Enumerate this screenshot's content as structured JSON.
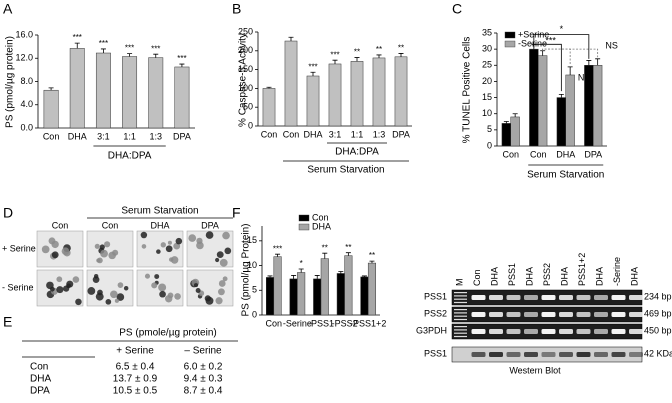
{
  "panel_labels": [
    "A",
    "B",
    "C",
    "D",
    "E",
    "F"
  ],
  "chart_data": [
    {
      "type": "bar",
      "ylabel": "PS (pmol/µg protein)",
      "categories": [
        "Con",
        "DHA",
        "3:1",
        "1:1",
        "1:3",
        "DPA"
      ],
      "values": [
        6.5,
        13.7,
        12.9,
        12.3,
        12.1,
        10.5
      ],
      "errors": [
        0.4,
        0.9,
        0.7,
        0.5,
        0.6,
        0.5
      ],
      "significance": [
        null,
        "***",
        "***",
        "***",
        "***",
        "***"
      ],
      "color": "#c0c0c0",
      "ylim": [
        0,
        16
      ],
      "yticks": [
        {
          "value": 0,
          "label": "0.0"
        },
        {
          "value": 4,
          "label": "4.0"
        },
        {
          "value": 8,
          "label": "8.0"
        },
        {
          "value": 12,
          "label": "12.0"
        },
        {
          "value": 16,
          "label": "16.0"
        }
      ],
      "group_label": "DHA:DPA"
    },
    {
      "type": "bar",
      "ylabel": "% Caspase-3 Activity",
      "categories": [
        "Con",
        "Con",
        "DHA",
        "3:1",
        "1:1",
        "1:3",
        "DPA"
      ],
      "values": [
        100,
        226,
        133,
        165,
        172,
        181,
        184
      ],
      "errors": [
        3,
        10,
        10,
        10,
        10,
        8,
        9
      ],
      "significance": [
        null,
        null,
        "***",
        "***",
        "**",
        "**",
        "**"
      ],
      "color": "#c0c0c0",
      "ylim": [
        0,
        250
      ],
      "yticks": [
        0,
        50,
        100,
        150,
        200,
        250
      ],
      "group_label": "DHA:DPA",
      "condition_label": "Serum Starvation"
    },
    {
      "type": "grouped_bar",
      "ylabel": "% TUNEL Positive Cells",
      "categories": [
        "Con",
        "Con",
        "DHA",
        "DPA"
      ],
      "series": [
        {
          "name": "+Serine",
          "color": "#000000",
          "values": [
            7,
            30,
            15,
            25
          ],
          "errors": [
            0.6,
            1.5,
            1.0,
            1.5
          ]
        },
        {
          "name": "-Serine",
          "color": "#a6a6a6",
          "values": [
            9,
            28,
            22,
            25
          ],
          "errors": [
            1.0,
            1.5,
            2.5,
            2.0
          ]
        }
      ],
      "ylim": [
        0,
        35
      ],
      "yticks": [
        0,
        5,
        10,
        15,
        20,
        25,
        30,
        35
      ],
      "annotations": [
        "***",
        "*",
        "NS",
        "NS"
      ],
      "condition_label": "Serum Starvation",
      "legend": "upper left"
    },
    {
      "type": "grouped_bar",
      "ylabel": "PS (pmol/µg Protein)",
      "categories": [
        "Con",
        "-Serine",
        "-PSS1",
        "-PSS2",
        "-PSS1+2"
      ],
      "series": [
        {
          "name": "Con",
          "color": "#000000",
          "values": [
            7.6,
            7.3,
            7.3,
            8.4,
            7.7
          ],
          "errors": [
            0.3,
            0.7,
            0.7,
            0.4,
            0.2
          ]
        },
        {
          "name": "DHA",
          "color": "#a6a6a6",
          "values": [
            11.8,
            8.6,
            11.4,
            12.0,
            10.5
          ],
          "errors": [
            0.5,
            0.7,
            1.1,
            0.6,
            0.4
          ],
          "significance": [
            "***",
            "*",
            "**",
            "**",
            "**"
          ]
        }
      ],
      "ylim": [
        0,
        18
      ],
      "yticks": [
        0,
        5,
        10,
        15
      ],
      "legend": "upper center"
    }
  ],
  "micrographs": {
    "title": "Serum Starvation",
    "columns": [
      "Con",
      "Con",
      "DHA",
      "DPA"
    ],
    "rows": [
      "+ Serine",
      "- Serine"
    ]
  },
  "table": {
    "title": "PS (pmole/µg protein)",
    "columns": [
      "+ Serine",
      "– Serine"
    ],
    "rows": [
      [
        "Con",
        "6.5 ± 0.4",
        "6.0 ± 0.2"
      ],
      [
        "DHA",
        "13.7 ± 0.9",
        "9.4 ± 0.3"
      ],
      [
        "DPA",
        "10.5 ± 0.5",
        "8.7 ± 0.4"
      ]
    ]
  },
  "gel": {
    "lanes": [
      "M",
      "Con",
      "DHA",
      "PSS1",
      "DHA",
      "PSS2",
      "DHA",
      "PSS1+2",
      "DHA",
      "-Serine",
      "DHA"
    ],
    "rows": [
      {
        "label": "PSS1",
        "size": "234 bp"
      },
      {
        "label": "PSS2",
        "size": "469 bp"
      },
      {
        "label": "G3PDH",
        "size": "450 bp"
      },
      {
        "label": "PSS1",
        "size": "42 KDa"
      }
    ],
    "caption": "Western Blot"
  }
}
